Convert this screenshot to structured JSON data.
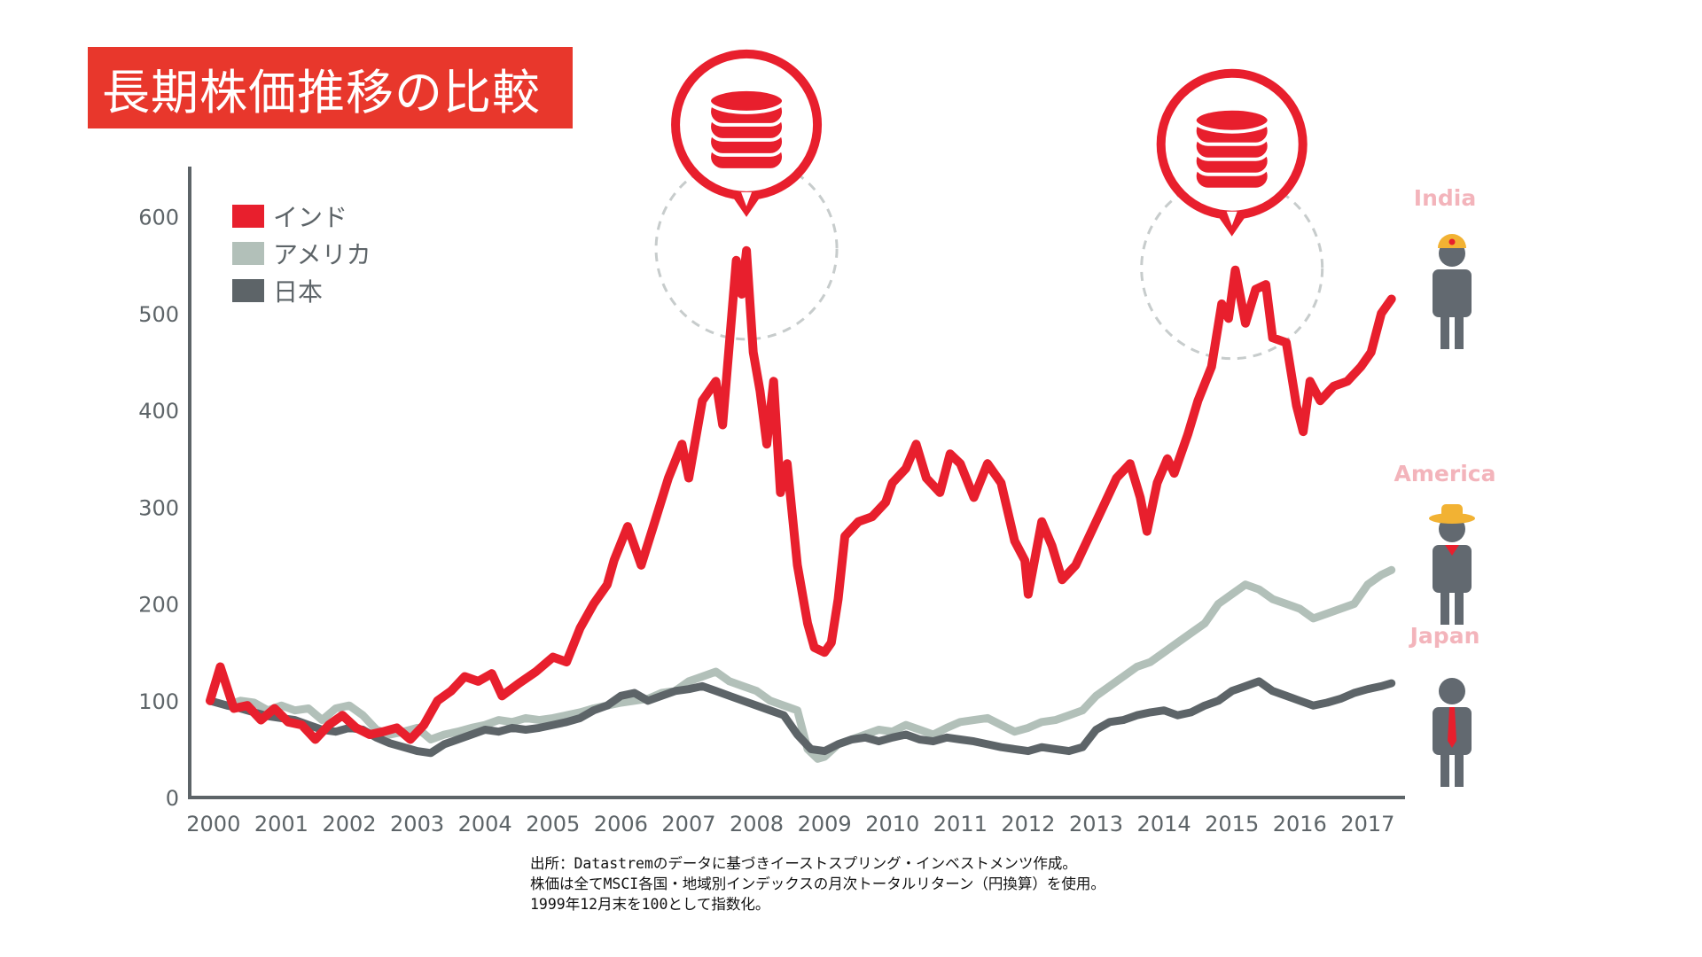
{
  "title": "長期株価推移の比較",
  "legend": [
    {
      "label": "インド",
      "color": "#e81f2d"
    },
    {
      "label": "アメリカ",
      "color": "#b2c0b9"
    },
    {
      "label": "日本",
      "color": "#5d6468"
    }
  ],
  "figure_labels": [
    {
      "label": "India",
      "color": "#f3b4bb",
      "icon": "person-turban-icon"
    },
    {
      "label": "America",
      "color": "#f3b4bb",
      "icon": "person-cowboy-hat-icon"
    },
    {
      "label": "Japan",
      "color": "#f3b4bb",
      "icon": "person-necktie-icon"
    }
  ],
  "peak_markers": [
    {
      "icon": "coin-stack-icon",
      "x": 2007.85,
      "y": 565
    },
    {
      "icon": "coin-stack-icon",
      "x": 2015.0,
      "y": 545
    }
  ],
  "source_lines": [
    "出所：Datastremのデータに基づきイーストスプリング・インベストメンツ作成。",
    "株価は全てMSCI各国・地域別インデックスの月次トータルリターン（円換算）を使用。",
    "1999年12月末を100として指数化。"
  ],
  "chart_data": {
    "type": "line",
    "title": "長期株価推移の比較",
    "xlabel": "",
    "ylabel": "",
    "xlim": [
      1999.65,
      2017.55
    ],
    "ylim": [
      0,
      650
    ],
    "y_ticks": [
      0,
      100,
      200,
      300,
      400,
      500,
      600
    ],
    "x_ticks": [
      2000,
      2001,
      2002,
      2003,
      2004,
      2005,
      2006,
      2007,
      2008,
      2009,
      2010,
      2011,
      2012,
      2013,
      2014,
      2015,
      2016,
      2017
    ],
    "grid": false,
    "legend_position": "top-left",
    "series": [
      {
        "name": "インド",
        "color": "#e81f2d",
        "points": [
          [
            1999.95,
            100
          ],
          [
            2000.1,
            135
          ],
          [
            2000.3,
            92
          ],
          [
            2000.5,
            95
          ],
          [
            2000.7,
            80
          ],
          [
            2000.9,
            92
          ],
          [
            2001.1,
            78
          ],
          [
            2001.3,
            75
          ],
          [
            2001.5,
            60
          ],
          [
            2001.7,
            75
          ],
          [
            2001.9,
            85
          ],
          [
            2002.1,
            72
          ],
          [
            2002.3,
            65
          ],
          [
            2002.5,
            68
          ],
          [
            2002.7,
            72
          ],
          [
            2002.9,
            60
          ],
          [
            2003.1,
            75
          ],
          [
            2003.3,
            100
          ],
          [
            2003.5,
            110
          ],
          [
            2003.7,
            125
          ],
          [
            2003.9,
            120
          ],
          [
            2004.1,
            128
          ],
          [
            2004.25,
            105
          ],
          [
            2004.5,
            118
          ],
          [
            2004.75,
            130
          ],
          [
            2005.0,
            145
          ],
          [
            2005.2,
            140
          ],
          [
            2005.4,
            175
          ],
          [
            2005.6,
            200
          ],
          [
            2005.8,
            220
          ],
          [
            2005.9,
            245
          ],
          [
            2006.1,
            280
          ],
          [
            2006.3,
            240
          ],
          [
            2006.5,
            285
          ],
          [
            2006.7,
            330
          ],
          [
            2006.9,
            365
          ],
          [
            2007.0,
            330
          ],
          [
            2007.2,
            410
          ],
          [
            2007.4,
            430
          ],
          [
            2007.5,
            385
          ],
          [
            2007.6,
            470
          ],
          [
            2007.7,
            555
          ],
          [
            2007.78,
            520
          ],
          [
            2007.85,
            565
          ],
          [
            2007.95,
            460
          ],
          [
            2008.05,
            420
          ],
          [
            2008.15,
            365
          ],
          [
            2008.25,
            430
          ],
          [
            2008.35,
            315
          ],
          [
            2008.45,
            345
          ],
          [
            2008.6,
            240
          ],
          [
            2008.75,
            180
          ],
          [
            2008.85,
            155
          ],
          [
            2009.0,
            150
          ],
          [
            2009.1,
            160
          ],
          [
            2009.2,
            205
          ],
          [
            2009.3,
            270
          ],
          [
            2009.5,
            285
          ],
          [
            2009.7,
            290
          ],
          [
            2009.9,
            305
          ],
          [
            2010.0,
            325
          ],
          [
            2010.2,
            340
          ],
          [
            2010.35,
            365
          ],
          [
            2010.5,
            330
          ],
          [
            2010.7,
            315
          ],
          [
            2010.85,
            355
          ],
          [
            2011.0,
            345
          ],
          [
            2011.2,
            310
          ],
          [
            2011.4,
            345
          ],
          [
            2011.6,
            325
          ],
          [
            2011.8,
            265
          ],
          [
            2011.95,
            245
          ],
          [
            2012.0,
            210
          ],
          [
            2012.2,
            285
          ],
          [
            2012.35,
            260
          ],
          [
            2012.5,
            225
          ],
          [
            2012.7,
            240
          ],
          [
            2012.9,
            270
          ],
          [
            2013.1,
            300
          ],
          [
            2013.3,
            330
          ],
          [
            2013.5,
            345
          ],
          [
            2013.65,
            310
          ],
          [
            2013.75,
            275
          ],
          [
            2013.9,
            325
          ],
          [
            2014.05,
            350
          ],
          [
            2014.15,
            335
          ],
          [
            2014.35,
            375
          ],
          [
            2014.5,
            410
          ],
          [
            2014.7,
            445
          ],
          [
            2014.85,
            510
          ],
          [
            2014.95,
            495
          ],
          [
            2015.05,
            545
          ],
          [
            2015.2,
            490
          ],
          [
            2015.35,
            525
          ],
          [
            2015.5,
            530
          ],
          [
            2015.6,
            475
          ],
          [
            2015.8,
            470
          ],
          [
            2015.95,
            405
          ],
          [
            2016.05,
            378
          ],
          [
            2016.15,
            430
          ],
          [
            2016.3,
            410
          ],
          [
            2016.5,
            425
          ],
          [
            2016.7,
            430
          ],
          [
            2016.9,
            445
          ],
          [
            2017.05,
            460
          ],
          [
            2017.2,
            500
          ],
          [
            2017.35,
            515
          ]
        ]
      },
      {
        "name": "アメリカ",
        "color": "#b2c0b9",
        "points": [
          [
            1999.95,
            100
          ],
          [
            2000.2,
            95
          ],
          [
            2000.4,
            100
          ],
          [
            2000.6,
            98
          ],
          [
            2000.8,
            90
          ],
          [
            2001.0,
            95
          ],
          [
            2001.2,
            90
          ],
          [
            2001.4,
            92
          ],
          [
            2001.6,
            80
          ],
          [
            2001.8,
            92
          ],
          [
            2002.0,
            95
          ],
          [
            2002.2,
            85
          ],
          [
            2002.4,
            70
          ],
          [
            2002.6,
            65
          ],
          [
            2002.8,
            68
          ],
          [
            2003.0,
            72
          ],
          [
            2003.2,
            60
          ],
          [
            2003.4,
            65
          ],
          [
            2003.6,
            68
          ],
          [
            2003.8,
            72
          ],
          [
            2004.0,
            75
          ],
          [
            2004.2,
            80
          ],
          [
            2004.4,
            78
          ],
          [
            2004.6,
            82
          ],
          [
            2004.8,
            80
          ],
          [
            2005.0,
            82
          ],
          [
            2005.2,
            85
          ],
          [
            2005.4,
            88
          ],
          [
            2005.6,
            92
          ],
          [
            2005.8,
            95
          ],
          [
            2006.0,
            98
          ],
          [
            2006.2,
            100
          ],
          [
            2006.4,
            102
          ],
          [
            2006.6,
            108
          ],
          [
            2006.8,
            110
          ],
          [
            2007.0,
            120
          ],
          [
            2007.2,
            125
          ],
          [
            2007.4,
            130
          ],
          [
            2007.6,
            120
          ],
          [
            2007.8,
            115
          ],
          [
            2008.0,
            110
          ],
          [
            2008.2,
            100
          ],
          [
            2008.4,
            95
          ],
          [
            2008.6,
            90
          ],
          [
            2008.75,
            50
          ],
          [
            2008.9,
            40
          ],
          [
            2009.0,
            42
          ],
          [
            2009.2,
            55
          ],
          [
            2009.4,
            60
          ],
          [
            2009.6,
            65
          ],
          [
            2009.8,
            70
          ],
          [
            2010.0,
            68
          ],
          [
            2010.2,
            75
          ],
          [
            2010.4,
            70
          ],
          [
            2010.6,
            65
          ],
          [
            2010.8,
            72
          ],
          [
            2011.0,
            78
          ],
          [
            2011.2,
            80
          ],
          [
            2011.4,
            82
          ],
          [
            2011.6,
            75
          ],
          [
            2011.8,
            68
          ],
          [
            2012.0,
            72
          ],
          [
            2012.2,
            78
          ],
          [
            2012.4,
            80
          ],
          [
            2012.6,
            85
          ],
          [
            2012.8,
            90
          ],
          [
            2013.0,
            105
          ],
          [
            2013.2,
            115
          ],
          [
            2013.4,
            125
          ],
          [
            2013.6,
            135
          ],
          [
            2013.8,
            140
          ],
          [
            2014.0,
            150
          ],
          [
            2014.2,
            160
          ],
          [
            2014.4,
            170
          ],
          [
            2014.6,
            180
          ],
          [
            2014.8,
            200
          ],
          [
            2015.0,
            210
          ],
          [
            2015.2,
            220
          ],
          [
            2015.4,
            215
          ],
          [
            2015.6,
            205
          ],
          [
            2015.8,
            200
          ],
          [
            2016.0,
            195
          ],
          [
            2016.2,
            185
          ],
          [
            2016.4,
            190
          ],
          [
            2016.6,
            195
          ],
          [
            2016.8,
            200
          ],
          [
            2017.0,
            220
          ],
          [
            2017.2,
            230
          ],
          [
            2017.35,
            235
          ]
        ]
      },
      {
        "name": "日本",
        "color": "#5d6468",
        "points": [
          [
            1999.95,
            100
          ],
          [
            2000.2,
            95
          ],
          [
            2000.4,
            92
          ],
          [
            2000.6,
            88
          ],
          [
            2000.8,
            84
          ],
          [
            2001.0,
            82
          ],
          [
            2001.2,
            80
          ],
          [
            2001.4,
            75
          ],
          [
            2001.6,
            70
          ],
          [
            2001.8,
            68
          ],
          [
            2002.0,
            72
          ],
          [
            2002.2,
            70
          ],
          [
            2002.4,
            62
          ],
          [
            2002.6,
            56
          ],
          [
            2002.8,
            52
          ],
          [
            2003.0,
            48
          ],
          [
            2003.2,
            46
          ],
          [
            2003.4,
            55
          ],
          [
            2003.6,
            60
          ],
          [
            2003.8,
            65
          ],
          [
            2004.0,
            70
          ],
          [
            2004.2,
            68
          ],
          [
            2004.4,
            72
          ],
          [
            2004.6,
            70
          ],
          [
            2004.8,
            72
          ],
          [
            2005.0,
            75
          ],
          [
            2005.2,
            78
          ],
          [
            2005.4,
            82
          ],
          [
            2005.6,
            90
          ],
          [
            2005.8,
            95
          ],
          [
            2006.0,
            105
          ],
          [
            2006.2,
            108
          ],
          [
            2006.4,
            100
          ],
          [
            2006.6,
            105
          ],
          [
            2006.8,
            110
          ],
          [
            2007.0,
            112
          ],
          [
            2007.2,
            115
          ],
          [
            2007.4,
            110
          ],
          [
            2007.6,
            105
          ],
          [
            2007.8,
            100
          ],
          [
            2008.0,
            95
          ],
          [
            2008.2,
            90
          ],
          [
            2008.4,
            85
          ],
          [
            2008.6,
            65
          ],
          [
            2008.8,
            50
          ],
          [
            2009.0,
            48
          ],
          [
            2009.2,
            55
          ],
          [
            2009.4,
            60
          ],
          [
            2009.6,
            62
          ],
          [
            2009.8,
            58
          ],
          [
            2010.0,
            62
          ],
          [
            2010.2,
            65
          ],
          [
            2010.4,
            60
          ],
          [
            2010.6,
            58
          ],
          [
            2010.8,
            62
          ],
          [
            2011.0,
            60
          ],
          [
            2011.2,
            58
          ],
          [
            2011.4,
            55
          ],
          [
            2011.6,
            52
          ],
          [
            2011.8,
            50
          ],
          [
            2012.0,
            48
          ],
          [
            2012.2,
            52
          ],
          [
            2012.4,
            50
          ],
          [
            2012.6,
            48
          ],
          [
            2012.8,
            52
          ],
          [
            2013.0,
            70
          ],
          [
            2013.2,
            78
          ],
          [
            2013.4,
            80
          ],
          [
            2013.6,
            85
          ],
          [
            2013.8,
            88
          ],
          [
            2014.0,
            90
          ],
          [
            2014.2,
            85
          ],
          [
            2014.4,
            88
          ],
          [
            2014.6,
            95
          ],
          [
            2014.8,
            100
          ],
          [
            2015.0,
            110
          ],
          [
            2015.2,
            115
          ],
          [
            2015.4,
            120
          ],
          [
            2015.6,
            110
          ],
          [
            2015.8,
            105
          ],
          [
            2016.0,
            100
          ],
          [
            2016.2,
            95
          ],
          [
            2016.4,
            98
          ],
          [
            2016.6,
            102
          ],
          [
            2016.8,
            108
          ],
          [
            2017.0,
            112
          ],
          [
            2017.2,
            115
          ],
          [
            2017.35,
            118
          ]
        ]
      }
    ]
  }
}
